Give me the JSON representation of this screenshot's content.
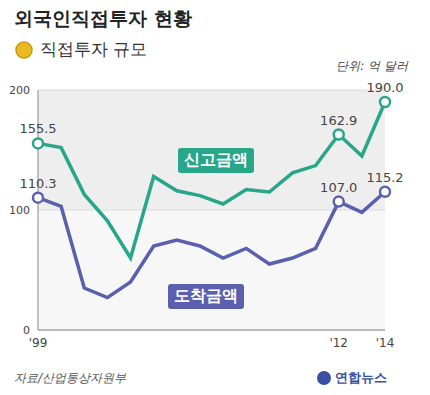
{
  "chart_data": {
    "type": "line",
    "title": "외국인직접투자 현황",
    "subtitle": "직접투자 규모",
    "unit": "단위: 억 달러",
    "source": "자료/산업통상자원부",
    "credit": "연합뉴스",
    "categories": [
      "'99",
      null,
      null,
      null,
      null,
      null,
      null,
      null,
      null,
      null,
      null,
      null,
      null,
      "'12",
      null,
      "'14"
    ],
    "series": [
      {
        "name": "신고금액",
        "color": "#27a68a",
        "values": [
          155.5,
          152,
          113,
          91,
          60,
          128,
          116,
          112,
          105,
          117,
          115,
          131,
          137,
          162.9,
          145,
          190.0
        ],
        "value_labels": [
          "155.5",
          null,
          null,
          null,
          null,
          null,
          null,
          null,
          null,
          null,
          null,
          null,
          null,
          "162.9",
          null,
          "190.0"
        ]
      },
      {
        "name": "도착금액",
        "color": "#5b5fae",
        "values": [
          110.3,
          103,
          35,
          27,
          40,
          70,
          75,
          70,
          60,
          68,
          55,
          60,
          68,
          107.0,
          98,
          115.2
        ],
        "value_labels": [
          "110.3",
          null,
          null,
          null,
          null,
          null,
          null,
          null,
          null,
          null,
          null,
          null,
          null,
          "107.0",
          null,
          "115.2"
        ]
      }
    ],
    "ylim": [
      0,
      200
    ],
    "yticks": [
      0,
      100,
      200
    ],
    "grid": true,
    "data_labels": true,
    "marker": "circle"
  }
}
